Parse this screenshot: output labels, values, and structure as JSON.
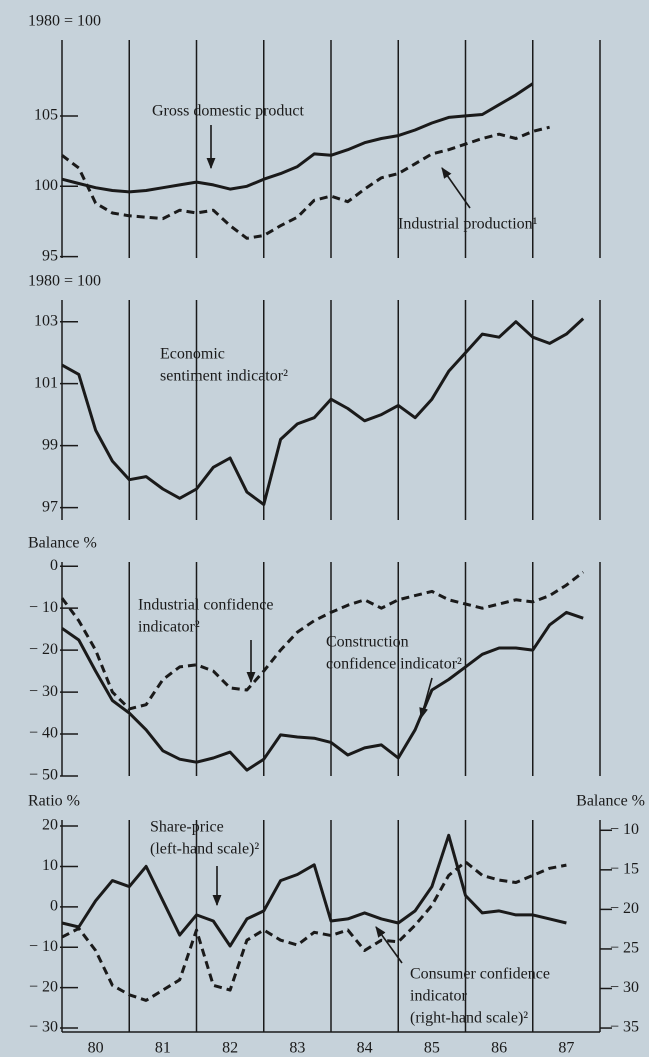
{
  "chart_data": [
    {
      "type": "line",
      "ylabel": "1980 = 100",
      "xlim": [
        80,
        88
      ],
      "xgrid": [
        81,
        82,
        83,
        84,
        85,
        86,
        87
      ],
      "x": [
        80,
        80.25,
        80.5,
        80.75,
        81,
        81.25,
        81.5,
        81.75,
        82,
        82.25,
        82.5,
        82.75,
        83,
        83.25,
        83.5,
        83.75,
        84,
        84.25,
        84.5,
        84.75,
        85,
        85.25,
        85.5,
        85.75,
        86,
        86.25,
        86.5,
        86.75,
        87,
        87.25,
        87.5,
        87.75
      ],
      "ylim": [
        94.9,
        110.4
      ],
      "yticks": [
        105,
        100,
        95
      ],
      "series": [
        {
          "color": "#1a1a1a",
          "dashed": false,
          "values": [
            100.5,
            100.2,
            99.9,
            99.7,
            99.6,
            99.7,
            99.9,
            100.1,
            100.3,
            100.1,
            99.8,
            100.0,
            100.5,
            100.9,
            101.4,
            102.3,
            102.2,
            102.6,
            103.1,
            103.4,
            103.6,
            104.0,
            104.5,
            104.9,
            105.0,
            105.1,
            105.8,
            106.5,
            107.3,
            null,
            null,
            null
          ]
        },
        {
          "color": "#1a1a1a",
          "dashed": true,
          "values": [
            102.2,
            101.3,
            98.8,
            98.1,
            97.9,
            97.8,
            97.7,
            98.3,
            98.1,
            98.3,
            97.2,
            96.3,
            96.5,
            97.2,
            97.8,
            99.0,
            99.3,
            98.9,
            99.8,
            100.6,
            100.9,
            101.6,
            102.3,
            102.6,
            103.0,
            103.4,
            103.7,
            103.4,
            103.9,
            104.2,
            null,
            null
          ]
        }
      ],
      "annotations": [
        {
          "lines": [
            "Gross domestic product"
          ]
        },
        {
          "lines": [
            "Industrial production¹"
          ]
        }
      ]
    },
    {
      "type": "line",
      "ylabel": "1980 = 100",
      "xlim": [
        80,
        88
      ],
      "xgrid": [
        81,
        82,
        83,
        84,
        85,
        86,
        87
      ],
      "x": [
        80,
        80.25,
        80.5,
        80.75,
        81,
        81.25,
        81.5,
        81.75,
        82,
        82.25,
        82.5,
        82.75,
        83,
        83.25,
        83.5,
        83.75,
        84,
        84.25,
        84.5,
        84.75,
        85,
        85.25,
        85.5,
        85.75,
        86,
        86.25,
        86.5,
        86.75,
        87,
        87.25,
        87.5,
        87.75
      ],
      "ylim": [
        96.6,
        103.7
      ],
      "yticks": [
        103,
        101,
        99,
        97
      ],
      "series": [
        {
          "color": "#1a1a1a",
          "dashed": false,
          "values": [
            101.6,
            101.3,
            99.5,
            98.5,
            97.9,
            98.0,
            97.6,
            97.3,
            97.6,
            98.3,
            98.6,
            97.5,
            97.1,
            99.2,
            99.7,
            99.9,
            100.5,
            100.2,
            99.8,
            100.0,
            100.3,
            99.9,
            100.5,
            101.4,
            102.0,
            102.6,
            102.5,
            103.0,
            102.5,
            102.3,
            102.6,
            103.1
          ]
        }
      ],
      "annotations": [
        {
          "lines": [
            "Economic",
            "sentiment indicator²"
          ]
        }
      ]
    },
    {
      "type": "line",
      "ylabel": "Balance %",
      "xlim": [
        80,
        88
      ],
      "xgrid": [
        81,
        82,
        83,
        84,
        85,
        86,
        87
      ],
      "x": [
        80,
        80.25,
        80.5,
        80.75,
        81,
        81.25,
        81.5,
        81.75,
        82,
        82.25,
        82.5,
        82.75,
        83,
        83.25,
        83.5,
        83.75,
        84,
        84.25,
        84.5,
        84.75,
        85,
        85.25,
        85.5,
        85.75,
        86,
        86.25,
        86.5,
        86.75,
        87,
        87.25,
        87.5,
        87.75
      ],
      "ylim": [
        -50,
        1
      ],
      "yticks": [
        0,
        {
          "value": -10,
          "label": "− 10"
        },
        {
          "value": -20,
          "label": "− 20"
        },
        {
          "value": -30,
          "label": "− 30"
        },
        {
          "value": -40,
          "label": "− 40"
        },
        {
          "value": -50,
          "label": "− 50"
        }
      ],
      "series": [
        {
          "color": "#1a1a1a",
          "dashed": true,
          "values": [
            -7.6,
            -13,
            -20,
            -30,
            -34,
            -33,
            -27,
            -24,
            -23.5,
            -25,
            -29,
            -29.5,
            -25,
            -20,
            -15.7,
            -13,
            -11,
            -9.3,
            -8,
            -10,
            -8,
            -7,
            -6,
            -8,
            -9,
            -10,
            -9,
            -8,
            -8.5,
            -7,
            -4.5,
            -1.4
          ]
        },
        {
          "color": "#1a1a1a",
          "dashed": false,
          "values": [
            -14.8,
            -17.6,
            -25,
            -32,
            -35,
            -39,
            -44,
            -46,
            -46.7,
            -45.7,
            -44.3,
            -48.6,
            -46,
            -40.2,
            -40.7,
            -41,
            -42,
            -45,
            -43.3,
            -42.6,
            -45.7,
            -39,
            -29.5,
            -27,
            -24,
            -21,
            -19.5,
            -19.5,
            -20,
            -14,
            -11,
            -12.4
          ]
        }
      ],
      "annotations": [
        {
          "lines": [
            "Industrial confidence",
            "indicator²"
          ]
        },
        {
          "lines": [
            "Construction",
            "confidence indicator²"
          ]
        }
      ]
    },
    {
      "type": "line",
      "ylabel": "Ratio %",
      "y2label": "Balance %",
      "xlim": [
        80,
        88
      ],
      "xgrid": [
        81,
        82,
        83,
        84,
        85,
        86,
        87
      ],
      "xticks": [
        {
          "value": 80.5,
          "label": "80"
        },
        {
          "value": 81.5,
          "label": "81"
        },
        {
          "value": 82.5,
          "label": "82"
        },
        {
          "value": 83.5,
          "label": "83"
        },
        {
          "value": 84.5,
          "label": "84"
        },
        {
          "value": 85.5,
          "label": "85"
        },
        {
          "value": 86.5,
          "label": "86"
        },
        {
          "value": 87.5,
          "label": "87"
        }
      ],
      "x": [
        80,
        80.25,
        80.5,
        80.75,
        81,
        81.25,
        81.5,
        81.75,
        82,
        82.25,
        82.5,
        82.75,
        83,
        83.25,
        83.5,
        83.75,
        84,
        84.25,
        84.5,
        84.75,
        85,
        85.25,
        85.5,
        85.75,
        86,
        86.25,
        86.5,
        86.75,
        87,
        87.25,
        87.5,
        87.75
      ],
      "ylim": [
        -31,
        21.5
      ],
      "yticks": [
        20,
        10,
        0,
        {
          "value": -10,
          "label": "− 10"
        },
        {
          "value": -20,
          "label": "− 20"
        },
        {
          "value": -30,
          "label": "− 30"
        }
      ],
      "y2lim": [
        -35.5,
        -8.7
      ],
      "y2ticks": [
        {
          "value": -10,
          "label": "− 10"
        },
        {
          "value": -15,
          "label": "− 15"
        },
        {
          "value": -20,
          "label": "− 20"
        },
        {
          "value": -25,
          "label": "− 25"
        },
        {
          "value": -30,
          "label": "− 30"
        },
        {
          "value": -35,
          "label": "− 35"
        }
      ],
      "series": [
        {
          "color": "#1a1a1a",
          "dashed": false,
          "values": [
            -4,
            -5,
            1.5,
            6.5,
            5,
            10,
            1.5,
            -7,
            -2,
            -3.5,
            -9.7,
            -3,
            -1,
            6.5,
            8,
            10.4,
            -3.5,
            -3,
            -1.5,
            -3,
            -4,
            -1,
            5,
            17.7,
            2.8,
            -1.5,
            -1,
            -2,
            -2,
            -3,
            -4,
            null
          ]
        },
        {
          "color": "#1a1a1a",
          "dashed": true,
          "axis": "y2",
          "values": [
            -23.5,
            -22.4,
            -25.2,
            -29.6,
            -30.8,
            -31.5,
            -30.2,
            -28.9,
            -22.6,
            -29.6,
            -30.2,
            -23.9,
            -22.6,
            -23.9,
            -24.5,
            -22.9,
            -23.3,
            -22.6,
            -25.2,
            -23.9,
            -24.1,
            -22,
            -19.5,
            -15.7,
            -14,
            -15.7,
            -16.3,
            -16.6,
            -15.7,
            -14.8,
            -14.4,
            null
          ]
        }
      ],
      "annotations": [
        {
          "lines": [
            "Share-price",
            "(left-hand scale)²"
          ]
        },
        {
          "lines": [
            "Consumer confidence",
            "indicator",
            "(right-hand scale)²"
          ]
        }
      ]
    }
  ]
}
